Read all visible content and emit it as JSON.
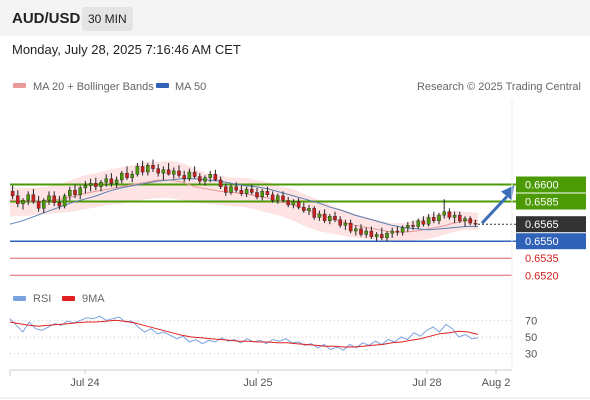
{
  "header": {
    "symbol": "AUD/USD",
    "timeframe": "30 MIN"
  },
  "date_text": "Monday, July 28, 2025 7:16:46 AM CET",
  "colors": {
    "green": "#4b9a06",
    "blue": "#2f62b8",
    "red": "#e06060",
    "band_fill": "#fde3e3",
    "ma20": "#e99a9a",
    "ma50": "#5a7fb0",
    "candle_up": "#4b9a06",
    "candle_down": "#cc1f1f",
    "price_badge": "#333333",
    "rsi": "#7aa3e0",
    "rsi_ma": "#e02020",
    "arrow": "#3a6fb8"
  },
  "chart_data": [
    {
      "type": "candlestick",
      "legend": {
        "position": "top-left",
        "items": [
          {
            "label": "MA 20 + Bollinger Bands",
            "color": "#e99a9a"
          },
          {
            "label": "MA 50",
            "color": "#2f62b8"
          }
        ]
      },
      "credit": "Research © 2025 Trading Central",
      "ylim": [
        0.6507,
        0.66745
      ],
      "x_ticks": [
        "Jul 24",
        "Jul 25",
        "Jul 28",
        "Aug 2"
      ],
      "levels": [
        {
          "label": "0.6600",
          "value": 0.66,
          "kind": "resistance"
        },
        {
          "label": "0.6585",
          "value": 0.6585,
          "kind": "resistance"
        },
        {
          "label": "0.6565",
          "value": 0.6565,
          "kind": "current"
        },
        {
          "label": "0.6550",
          "value": 0.655,
          "kind": "pivot"
        },
        {
          "label": "0.6535",
          "value": 0.6535,
          "kind": "support"
        },
        {
          "label": "0.6520",
          "value": 0.652,
          "kind": "support"
        }
      ],
      "ohlc": [
        [
          0.6594,
          0.6599,
          0.6587,
          0.659
        ],
        [
          0.659,
          0.6595,
          0.658,
          0.6583
        ],
        [
          0.6583,
          0.6588,
          0.6578,
          0.6586
        ],
        [
          0.6586,
          0.6594,
          0.6582,
          0.6591
        ],
        [
          0.6591,
          0.6596,
          0.6583,
          0.6585
        ],
        [
          0.6585,
          0.659,
          0.6576,
          0.6579
        ],
        [
          0.6579,
          0.6588,
          0.6575,
          0.6586
        ],
        [
          0.6586,
          0.6594,
          0.6582,
          0.659
        ],
        [
          0.659,
          0.6594,
          0.6581,
          0.6584
        ],
        [
          0.6584,
          0.659,
          0.6578,
          0.6581
        ],
        [
          0.6581,
          0.6592,
          0.6579,
          0.659
        ],
        [
          0.659,
          0.6598,
          0.6586,
          0.6595
        ],
        [
          0.6595,
          0.66,
          0.6588,
          0.6591
        ],
        [
          0.6591,
          0.6599,
          0.6587,
          0.6597
        ],
        [
          0.6597,
          0.6603,
          0.6592,
          0.6599
        ],
        [
          0.6599,
          0.6605,
          0.6594,
          0.6601
        ],
        [
          0.6601,
          0.6606,
          0.6595,
          0.6598
        ],
        [
          0.6598,
          0.6604,
          0.6594,
          0.6602
        ],
        [
          0.6602,
          0.6609,
          0.6598,
          0.6605
        ],
        [
          0.6605,
          0.661,
          0.6598,
          0.6601
        ],
        [
          0.6601,
          0.6607,
          0.6597,
          0.6604
        ],
        [
          0.6604,
          0.6612,
          0.6601,
          0.661
        ],
        [
          0.661,
          0.6616,
          0.6604,
          0.6606
        ],
        [
          0.6606,
          0.6612,
          0.6602,
          0.6609
        ],
        [
          0.6609,
          0.6619,
          0.6607,
          0.6616
        ],
        [
          0.6616,
          0.6621,
          0.6608,
          0.6611
        ],
        [
          0.6611,
          0.6619,
          0.6608,
          0.6617
        ],
        [
          0.6617,
          0.6622,
          0.6611,
          0.6614
        ],
        [
          0.6614,
          0.6618,
          0.6607,
          0.661
        ],
        [
          0.661,
          0.6616,
          0.6604,
          0.6613
        ],
        [
          0.6613,
          0.6619,
          0.6608,
          0.6609
        ],
        [
          0.6609,
          0.6615,
          0.6605,
          0.6612
        ],
        [
          0.6612,
          0.6617,
          0.6606,
          0.6608
        ],
        [
          0.6608,
          0.6612,
          0.6602,
          0.6605
        ],
        [
          0.6605,
          0.6614,
          0.6603,
          0.6611
        ],
        [
          0.6611,
          0.6616,
          0.6605,
          0.6607
        ],
        [
          0.6607,
          0.661,
          0.66,
          0.6603
        ],
        [
          0.6603,
          0.6608,
          0.6599,
          0.6606
        ],
        [
          0.6606,
          0.6612,
          0.6602,
          0.6609
        ],
        [
          0.6609,
          0.6613,
          0.6603,
          0.6604
        ],
        [
          0.6604,
          0.6607,
          0.6596,
          0.6598
        ],
        [
          0.6598,
          0.6601,
          0.659,
          0.6593
        ],
        [
          0.6593,
          0.66,
          0.6591,
          0.6598
        ],
        [
          0.6598,
          0.6602,
          0.6593,
          0.6595
        ],
        [
          0.6595,
          0.6599,
          0.659,
          0.6592
        ],
        [
          0.6592,
          0.6598,
          0.6589,
          0.6596
        ],
        [
          0.6596,
          0.66,
          0.6591,
          0.6593
        ],
        [
          0.6593,
          0.6597,
          0.6587,
          0.6589
        ],
        [
          0.6589,
          0.6596,
          0.6586,
          0.6594
        ],
        [
          0.6594,
          0.6598,
          0.6589,
          0.6591
        ],
        [
          0.6591,
          0.6594,
          0.6584,
          0.6586
        ],
        [
          0.6586,
          0.6592,
          0.6583,
          0.659
        ],
        [
          0.659,
          0.6594,
          0.6584,
          0.6586
        ],
        [
          0.6586,
          0.6589,
          0.658,
          0.6582
        ],
        [
          0.6582,
          0.6587,
          0.6579,
          0.6585
        ],
        [
          0.6585,
          0.6588,
          0.6578,
          0.658
        ],
        [
          0.658,
          0.6584,
          0.6575,
          0.6577
        ],
        [
          0.6577,
          0.6582,
          0.6573,
          0.6579
        ],
        [
          0.6579,
          0.6581,
          0.6569,
          0.6571
        ],
        [
          0.6571,
          0.6577,
          0.6568,
          0.6574
        ],
        [
          0.6574,
          0.6578,
          0.6566,
          0.6568
        ],
        [
          0.6568,
          0.6574,
          0.6565,
          0.6572
        ],
        [
          0.6572,
          0.6576,
          0.6567,
          0.6569
        ],
        [
          0.6569,
          0.6572,
          0.6562,
          0.6564
        ],
        [
          0.6564,
          0.6569,
          0.656,
          0.6566
        ],
        [
          0.6566,
          0.6569,
          0.6557,
          0.6559
        ],
        [
          0.6559,
          0.6564,
          0.6555,
          0.6561
        ],
        [
          0.6561,
          0.6565,
          0.6554,
          0.6556
        ],
        [
          0.6556,
          0.6562,
          0.6553,
          0.6559
        ],
        [
          0.6559,
          0.6563,
          0.6552,
          0.6554
        ],
        [
          0.6554,
          0.6558,
          0.655,
          0.6556
        ],
        [
          0.6556,
          0.6562,
          0.6551,
          0.6553
        ],
        [
          0.6553,
          0.6559,
          0.655,
          0.6557
        ],
        [
          0.6557,
          0.6562,
          0.6553,
          0.6559
        ],
        [
          0.6559,
          0.6563,
          0.6555,
          0.6558
        ],
        [
          0.6558,
          0.6564,
          0.6555,
          0.6562
        ],
        [
          0.6562,
          0.6567,
          0.6558,
          0.6564
        ],
        [
          0.6564,
          0.6568,
          0.656,
          0.6563
        ],
        [
          0.6563,
          0.657,
          0.6561,
          0.6568
        ],
        [
          0.6568,
          0.6572,
          0.6563,
          0.6565
        ],
        [
          0.6565,
          0.6574,
          0.6563,
          0.6571
        ],
        [
          0.6571,
          0.6576,
          0.6566,
          0.6568
        ],
        [
          0.6568,
          0.6575,
          0.6565,
          0.6573
        ],
        [
          0.6573,
          0.6587,
          0.657,
          0.6576
        ],
        [
          0.6576,
          0.6579,
          0.6569,
          0.6571
        ],
        [
          0.6571,
          0.6576,
          0.6566,
          0.6573
        ],
        [
          0.6573,
          0.6576,
          0.6566,
          0.6568
        ],
        [
          0.6568,
          0.6572,
          0.6563,
          0.657
        ],
        [
          0.657,
          0.6572,
          0.6564,
          0.6566
        ],
        [
          0.6566,
          0.6569,
          0.6563,
          0.6565
        ]
      ],
      "ma20": [
        0.6586,
        0.6586,
        0.6585,
        0.6586,
        0.6587,
        0.6589,
        0.6592,
        0.6594,
        0.6596,
        0.6598,
        0.66,
        0.6602,
        0.6604,
        0.6604,
        0.6602,
        0.6598,
        0.6596,
        0.6594,
        0.6593,
        0.6592,
        0.659,
        0.6588,
        0.6585,
        0.6582,
        0.6578,
        0.6574,
        0.657,
        0.6567,
        0.6564,
        0.6562,
        0.656,
        0.6558,
        0.6558,
        0.6559,
        0.6561,
        0.6563,
        0.6566,
        0.6568,
        0.6568
      ],
      "bb_upper": [
        0.6598,
        0.6597,
        0.6597,
        0.6598,
        0.66,
        0.6604,
        0.6608,
        0.661,
        0.6613,
        0.6615,
        0.6617,
        0.662,
        0.662,
        0.6621,
        0.6619,
        0.6614,
        0.661,
        0.6608,
        0.6606,
        0.6606,
        0.6604,
        0.6602,
        0.6598,
        0.6596,
        0.6591,
        0.6587,
        0.6582,
        0.6578,
        0.6574,
        0.6571,
        0.6568,
        0.6566,
        0.6566,
        0.6569,
        0.6573,
        0.6575,
        0.6577,
        0.6576,
        0.6575
      ],
      "bb_lower": [
        0.6572,
        0.6572,
        0.6573,
        0.6574,
        0.6575,
        0.6576,
        0.6578,
        0.658,
        0.6582,
        0.6583,
        0.6585,
        0.6587,
        0.6588,
        0.6588,
        0.6586,
        0.6584,
        0.6583,
        0.6582,
        0.6581,
        0.658,
        0.6578,
        0.6575,
        0.6572,
        0.6568,
        0.6563,
        0.6559,
        0.6557,
        0.6555,
        0.6553,
        0.6552,
        0.6551,
        0.655,
        0.655,
        0.6551,
        0.6552,
        0.6555,
        0.6558,
        0.656,
        0.656
      ],
      "ma50": [
        0.6565,
        0.6568,
        0.6572,
        0.6576,
        0.658,
        0.6584,
        0.6587,
        0.659,
        0.6594,
        0.6597,
        0.6599,
        0.6601,
        0.6603,
        0.6604,
        0.6605,
        0.6605,
        0.6604,
        0.6603,
        0.6601,
        0.6599,
        0.6598,
        0.6596,
        0.6593,
        0.659,
        0.6587,
        0.6584,
        0.658,
        0.6577,
        0.6573,
        0.657,
        0.6567,
        0.6564,
        0.6562,
        0.6561,
        0.656,
        0.6561,
        0.6562,
        0.6563,
        0.6563
      ]
    },
    {
      "type": "line",
      "legend": {
        "position": "top-left",
        "items": [
          {
            "label": "RSI",
            "color": "#7aa3e0"
          },
          {
            "label": "9MA",
            "color": "#e02020"
          }
        ]
      },
      "ylim": [
        20,
        80
      ],
      "y_ticks": [
        "70",
        "50",
        "30"
      ],
      "series": [
        {
          "name": "RSI",
          "values": [
            72,
            64,
            56,
            68,
            60,
            58,
            62,
            66,
            64,
            69,
            67,
            70,
            73,
            72,
            75,
            70,
            72,
            74,
            68,
            69,
            62,
            56,
            60,
            54,
            56,
            52,
            48,
            51,
            44,
            47,
            42,
            46,
            44,
            49,
            45,
            47,
            43,
            48,
            44,
            46,
            42,
            47,
            45,
            48,
            43,
            44,
            40,
            42,
            37,
            41,
            35,
            38,
            34,
            41,
            37,
            43,
            40,
            45,
            41,
            47,
            44,
            50,
            47,
            55,
            51,
            58,
            62,
            56,
            65,
            60,
            50,
            53,
            48,
            49
          ]
        },
        {
          "name": "9MA",
          "values": [
            68,
            66,
            64,
            63,
            64,
            65,
            66,
            67,
            68,
            68,
            69,
            70,
            69,
            67,
            64,
            61,
            58,
            55,
            52,
            50,
            49,
            48,
            47,
            46,
            45,
            45,
            44,
            44,
            43,
            43,
            42,
            41,
            40,
            39,
            39,
            38,
            38,
            39,
            40,
            41,
            43,
            44,
            46,
            48,
            51,
            54,
            55,
            57,
            56,
            53
          ]
        }
      ]
    }
  ]
}
